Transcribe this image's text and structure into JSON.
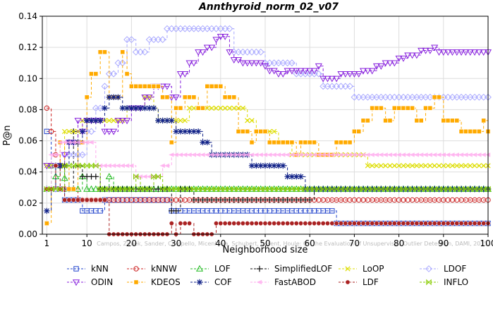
{
  "chart_data": {
    "type": "line",
    "title": "Annthyroid_norm_02_v07",
    "xlabel": "Neighborhood size",
    "ylabel": "P@n",
    "xlim": [
      0,
      100
    ],
    "ylim": [
      0,
      0.14
    ],
    "x_ticks": [
      "1",
      "10",
      "20",
      "30",
      "40",
      "50",
      "60",
      "70",
      "80",
      "90",
      "100"
    ],
    "y_ticks": [
      "0.00",
      "0.02",
      "0.04",
      "0.06",
      "0.08",
      "0.10",
      "0.12",
      "0.14"
    ],
    "watermark": "Campos, Zimek, Sander, Campello, Micenkova, Schubert, Assent, Houle: On the Evaluation of Unsupervised Outlier Detection, DAMI, 2015.",
    "legend_position": "bottom",
    "series": [
      {
        "name": "kNN",
        "color": "#2244cc",
        "marker": "square",
        "points": [
          [
            1,
            0.066
          ],
          [
            2,
            0.044
          ],
          [
            3,
            0.029
          ],
          [
            4,
            0.029
          ],
          [
            5,
            0.022
          ],
          [
            8,
            0.022
          ],
          [
            9,
            0.015
          ],
          [
            13,
            0.015
          ],
          [
            14,
            0.022
          ],
          [
            28,
            0.022
          ],
          [
            29,
            0.015
          ],
          [
            65,
            0.015
          ],
          [
            66,
            0.007
          ],
          [
            100,
            0.007
          ]
        ]
      },
      {
        "name": "kNNW",
        "color": "#cc2222",
        "marker": "circle",
        "points": [
          [
            1,
            0.081
          ],
          [
            2,
            0.066
          ],
          [
            3,
            0.051
          ],
          [
            4,
            0.044
          ],
          [
            5,
            0.029
          ],
          [
            7,
            0.029
          ],
          [
            8,
            0.022
          ],
          [
            100,
            0.022
          ]
        ]
      },
      {
        "name": "LOF",
        "color": "#22bb22",
        "marker": "triangle-up",
        "points": [
          [
            1,
            0.029
          ],
          [
            2,
            0.044
          ],
          [
            3,
            0.037
          ],
          [
            4,
            0.044
          ],
          [
            5,
            0.036
          ],
          [
            6,
            0.029
          ],
          [
            8,
            0.029
          ],
          [
            9,
            0.037
          ],
          [
            10,
            0.029
          ],
          [
            11,
            0.029
          ],
          [
            12,
            0.029
          ],
          [
            13,
            0.029
          ],
          [
            14,
            0.029
          ],
          [
            15,
            0.037
          ],
          [
            16,
            0.029
          ],
          [
            100,
            0.029
          ]
        ]
      },
      {
        "name": "SimplifiedLOF",
        "color": "#111111",
        "marker": "plus",
        "points": [
          [
            1,
            0.029
          ],
          [
            3,
            0.044
          ],
          [
            4,
            0.044
          ],
          [
            5,
            0.029
          ],
          [
            7,
            0.066
          ],
          [
            8,
            0.044
          ],
          [
            9,
            0.037
          ],
          [
            12,
            0.037
          ],
          [
            13,
            0.029
          ],
          [
            27,
            0.029
          ],
          [
            28,
            0.029
          ],
          [
            29,
            0.015
          ],
          [
            31,
            0.029
          ],
          [
            33,
            0.029
          ],
          [
            34,
            0.022
          ],
          [
            60,
            0.022
          ],
          [
            61,
            0.029
          ],
          [
            100,
            0.029
          ]
        ]
      },
      {
        "name": "LoOP",
        "color": "#dddd00",
        "marker": "x",
        "points": [
          [
            1,
            0.044
          ],
          [
            5,
            0.066
          ],
          [
            8,
            0.066
          ],
          [
            9,
            0.073
          ],
          [
            18,
            0.073
          ],
          [
            19,
            0.081
          ],
          [
            20,
            0.081
          ],
          [
            21,
            0.081
          ],
          [
            22,
            0.081
          ],
          [
            23,
            0.088
          ],
          [
            25,
            0.081
          ],
          [
            26,
            0.073
          ],
          [
            30,
            0.073
          ],
          [
            31,
            0.073
          ],
          [
            33,
            0.081
          ],
          [
            44,
            0.081
          ],
          [
            46,
            0.073
          ],
          [
            47,
            0.073
          ],
          [
            48,
            0.066
          ],
          [
            52,
            0.066
          ],
          [
            53,
            0.059
          ],
          [
            55,
            0.059
          ],
          [
            56,
            0.051
          ],
          [
            72,
            0.051
          ],
          [
            73,
            0.044
          ],
          [
            100,
            0.044
          ]
        ]
      },
      {
        "name": "LDOF",
        "color": "#aaaaff",
        "marker": "diamond",
        "points": [
          [
            1,
            0.029
          ],
          [
            5,
            0.051
          ],
          [
            10,
            0.066
          ],
          [
            12,
            0.081
          ],
          [
            14,
            0.095
          ],
          [
            15,
            0.103
          ],
          [
            17,
            0.11
          ],
          [
            19,
            0.125
          ],
          [
            21,
            0.117
          ],
          [
            22,
            0.117
          ],
          [
            24,
            0.125
          ],
          [
            26,
            0.125
          ],
          [
            28,
            0.132
          ],
          [
            42,
            0.132
          ],
          [
            43,
            0.117
          ],
          [
            48,
            0.117
          ],
          [
            50,
            0.11
          ],
          [
            55,
            0.11
          ],
          [
            57,
            0.103
          ],
          [
            62,
            0.103
          ],
          [
            63,
            0.095
          ],
          [
            66,
            0.095
          ],
          [
            70,
            0.088
          ],
          [
            100,
            0.088
          ]
        ]
      },
      {
        "name": "ODIN",
        "color": "#8822dd",
        "marker": "triangle-down",
        "points": [
          [
            1,
            0.044
          ],
          [
            2,
            0.044
          ],
          [
            5,
            0.051
          ],
          [
            6,
            0.059
          ],
          [
            7,
            0.059
          ],
          [
            8,
            0.073
          ],
          [
            9,
            0.066
          ],
          [
            10,
            0.073
          ],
          [
            14,
            0.066
          ],
          [
            16,
            0.066
          ],
          [
            17,
            0.073
          ],
          [
            20,
            0.081
          ],
          [
            23,
            0.088
          ],
          [
            25,
            0.095
          ],
          [
            28,
            0.095
          ],
          [
            29,
            0.088
          ],
          [
            31,
            0.103
          ],
          [
            33,
            0.11
          ],
          [
            35,
            0.117
          ],
          [
            37,
            0.12
          ],
          [
            39,
            0.125
          ],
          [
            40,
            0.127
          ],
          [
            41,
            0.127
          ],
          [
            42,
            0.117
          ],
          [
            43,
            0.112
          ],
          [
            45,
            0.11
          ],
          [
            48,
            0.11
          ],
          [
            50,
            0.108
          ],
          [
            51,
            0.105
          ],
          [
            53,
            0.103
          ],
          [
            55,
            0.105
          ],
          [
            58,
            0.105
          ],
          [
            62,
            0.108
          ],
          [
            63,
            0.1
          ],
          [
            65,
            0.1
          ],
          [
            67,
            0.103
          ],
          [
            70,
            0.103
          ],
          [
            72,
            0.105
          ],
          [
            75,
            0.108
          ],
          [
            77,
            0.11
          ],
          [
            80,
            0.113
          ],
          [
            82,
            0.115
          ],
          [
            85,
            0.118
          ],
          [
            88,
            0.12
          ],
          [
            89,
            0.117
          ],
          [
            100,
            0.117
          ]
        ]
      },
      {
        "name": "KDEOS",
        "color": "#ffaa00",
        "marker": "square-filled",
        "points": [
          [
            1,
            0.007
          ],
          [
            2,
            0.029
          ],
          [
            3,
            0.044
          ],
          [
            4,
            0.059
          ],
          [
            5,
            0.044
          ],
          [
            6,
            0.029
          ],
          [
            8,
            0.059
          ],
          [
            10,
            0.088
          ],
          [
            11,
            0.103
          ],
          [
            12,
            0.103
          ],
          [
            13,
            0.117
          ],
          [
            14,
            0.117
          ],
          [
            15,
            0.088
          ],
          [
            17,
            0.088
          ],
          [
            18,
            0.117
          ],
          [
            19,
            0.103
          ],
          [
            20,
            0.095
          ],
          [
            26,
            0.095
          ],
          [
            27,
            0.088
          ],
          [
            28,
            0.088
          ],
          [
            29,
            0.059
          ],
          [
            30,
            0.081
          ],
          [
            32,
            0.088
          ],
          [
            34,
            0.088
          ],
          [
            35,
            0.081
          ],
          [
            37,
            0.095
          ],
          [
            40,
            0.095
          ],
          [
            41,
            0.088
          ],
          [
            43,
            0.088
          ],
          [
            44,
            0.066
          ],
          [
            46,
            0.066
          ],
          [
            47,
            0.059
          ],
          [
            48,
            0.066
          ],
          [
            50,
            0.066
          ],
          [
            51,
            0.059
          ],
          [
            55,
            0.059
          ],
          [
            57,
            0.051
          ],
          [
            58,
            0.059
          ],
          [
            61,
            0.059
          ],
          [
            62,
            0.051
          ],
          [
            66,
            0.059
          ],
          [
            70,
            0.066
          ],
          [
            72,
            0.073
          ],
          [
            74,
            0.081
          ],
          [
            77,
            0.073
          ],
          [
            79,
            0.081
          ],
          [
            82,
            0.081
          ],
          [
            84,
            0.073
          ],
          [
            86,
            0.081
          ],
          [
            88,
            0.088
          ],
          [
            90,
            0.073
          ],
          [
            92,
            0.073
          ],
          [
            94,
            0.066
          ],
          [
            97,
            0.066
          ],
          [
            99,
            0.073
          ],
          [
            100,
            0.066
          ]
        ]
      },
      {
        "name": "COF",
        "color": "#112288",
        "marker": "asterisk",
        "points": [
          [
            1,
            0.015
          ],
          [
            2,
            0.029
          ],
          [
            3,
            0.044
          ],
          [
            4,
            0.044
          ],
          [
            6,
            0.059
          ],
          [
            8,
            0.059
          ],
          [
            9,
            0.066
          ],
          [
            10,
            0.073
          ],
          [
            14,
            0.081
          ],
          [
            15,
            0.088
          ],
          [
            17,
            0.088
          ],
          [
            18,
            0.081
          ],
          [
            25,
            0.081
          ],
          [
            26,
            0.073
          ],
          [
            28,
            0.073
          ],
          [
            29,
            0.073
          ],
          [
            30,
            0.066
          ],
          [
            34,
            0.066
          ],
          [
            36,
            0.059
          ],
          [
            37,
            0.059
          ],
          [
            38,
            0.051
          ],
          [
            46,
            0.051
          ],
          [
            47,
            0.044
          ],
          [
            53,
            0.044
          ],
          [
            55,
            0.037
          ],
          [
            58,
            0.037
          ],
          [
            59,
            0.029
          ],
          [
            100,
            0.029
          ]
        ]
      },
      {
        "name": "FastABOD",
        "color": "#ffaaee",
        "marker": "triangle-left",
        "points": [
          [
            1,
            0.029
          ],
          [
            2,
            0.051
          ],
          [
            4,
            0.059
          ],
          [
            7,
            0.059
          ],
          [
            10,
            0.059
          ],
          [
            12,
            0.044
          ],
          [
            14,
            0.044
          ],
          [
            15,
            0.044
          ],
          [
            20,
            0.044
          ],
          [
            21,
            0.037
          ],
          [
            26,
            0.037
          ],
          [
            27,
            0.044
          ],
          [
            29,
            0.051
          ],
          [
            100,
            0.051
          ]
        ]
      },
      {
        "name": "LDF",
        "color": "#aa2222",
        "marker": "circle-filled",
        "points": [
          [
            1,
            0.029
          ],
          [
            2,
            0.029
          ],
          [
            3,
            0.044
          ],
          [
            4,
            0.029
          ],
          [
            5,
            0.022
          ],
          [
            8,
            0.022
          ],
          [
            14,
            0.022
          ],
          [
            15,
            0.0
          ],
          [
            27,
            0.0
          ],
          [
            29,
            0.007
          ],
          [
            30,
            0.0
          ],
          [
            31,
            0.007
          ],
          [
            33,
            0.007
          ],
          [
            34,
            0.0
          ],
          [
            38,
            0.0
          ],
          [
            39,
            0.007
          ],
          [
            100,
            0.007
          ]
        ]
      },
      {
        "name": "INFLO",
        "color": "#88cc00",
        "marker": "bowtie",
        "points": [
          [
            1,
            0.029
          ],
          [
            2,
            0.029
          ],
          [
            3,
            0.029
          ],
          [
            5,
            0.044
          ],
          [
            12,
            0.044
          ],
          [
            13,
            0.029
          ],
          [
            20,
            0.029
          ],
          [
            21,
            0.037
          ],
          [
            22,
            0.029
          ],
          [
            25,
            0.037
          ],
          [
            27,
            0.029
          ],
          [
            100,
            0.029
          ]
        ]
      }
    ]
  }
}
